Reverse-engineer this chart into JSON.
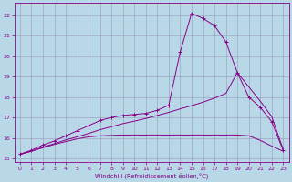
{
  "bg_color": "#b8d8e8",
  "line_color": "#880088",
  "grid_color": "#9999bb",
  "xlabel": "Windchill (Refroidissement éolien,°C)",
  "ylim": [
    14.8,
    22.6
  ],
  "xlim": [
    -0.5,
    23.5
  ],
  "yticks": [
    15,
    16,
    17,
    18,
    19,
    20,
    21,
    22
  ],
  "xticks": [
    0,
    1,
    2,
    3,
    4,
    5,
    6,
    7,
    8,
    9,
    10,
    11,
    12,
    13,
    14,
    15,
    16,
    17,
    18,
    19,
    20,
    21,
    22,
    23
  ],
  "curve1_x": [
    0,
    1,
    2,
    3,
    4,
    5,
    6,
    7,
    8,
    9,
    10,
    11,
    12,
    13,
    14,
    15,
    16,
    17,
    18,
    19,
    20,
    21,
    22,
    23
  ],
  "curve1_y": [
    15.2,
    15.4,
    15.65,
    15.85,
    16.1,
    16.35,
    16.6,
    16.85,
    17.0,
    17.1,
    17.15,
    17.2,
    17.35,
    17.6,
    20.2,
    22.1,
    21.85,
    21.5,
    20.7,
    19.2,
    18.0,
    17.5,
    16.8,
    15.4
  ],
  "curve2_x": [
    0,
    1,
    2,
    3,
    4,
    5,
    6,
    7,
    8,
    9,
    10,
    11,
    12,
    13,
    14,
    15,
    16,
    17,
    18,
    19,
    20,
    21,
    22,
    23
  ],
  "curve2_y": [
    15.2,
    15.35,
    15.55,
    15.72,
    15.9,
    16.05,
    16.22,
    16.4,
    16.55,
    16.7,
    16.82,
    16.95,
    17.1,
    17.25,
    17.42,
    17.58,
    17.75,
    17.95,
    18.18,
    19.2,
    18.5,
    17.8,
    17.05,
    15.45
  ],
  "curve3_x": [
    0,
    1,
    2,
    3,
    4,
    5,
    6,
    7,
    8,
    9,
    10,
    11,
    12,
    13,
    14,
    15,
    16,
    17,
    18,
    19,
    20,
    21,
    22,
    23
  ],
  "curve3_y": [
    15.2,
    15.35,
    15.52,
    15.68,
    15.82,
    15.95,
    16.05,
    16.1,
    16.12,
    16.14,
    16.14,
    16.14,
    16.14,
    16.14,
    16.14,
    16.14,
    16.14,
    16.14,
    16.14,
    16.14,
    16.1,
    15.88,
    15.6,
    15.35
  ]
}
